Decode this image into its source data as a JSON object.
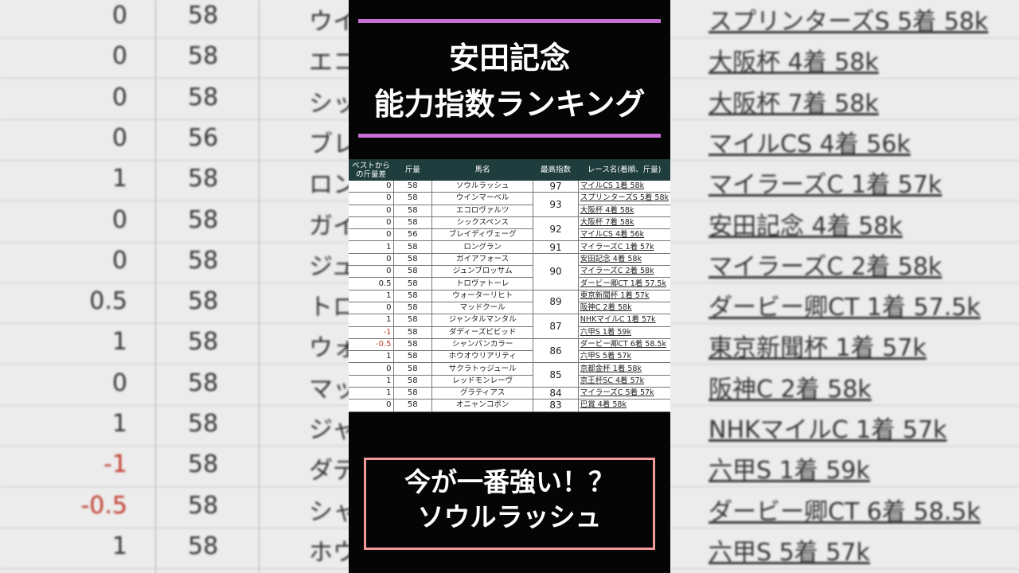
{
  "title": {
    "line1": "安田記念",
    "line2": "能力指数ランキング"
  },
  "caption": {
    "line1": "今が一番強い！？",
    "line2": "ソウルラッシュ"
  },
  "table": {
    "headers": [
      "ベストからの斤量差",
      "斤量",
      "馬名",
      "最高指数",
      "レース名(着順、斤量)"
    ],
    "rows": [
      {
        "diff": "0",
        "weight": "58",
        "name": "ソウルラッシュ",
        "index": "97",
        "race": "マイルCS 1着 58k"
      },
      {
        "diff": "0",
        "weight": "58",
        "name": "ウインマーベル",
        "index": "93",
        "race": "スプリンターズS 5着 58k"
      },
      {
        "diff": "0",
        "weight": "58",
        "name": "エコロヴァルツ",
        "index": "93",
        "race": "大阪杯 4着 58k"
      },
      {
        "diff": "0",
        "weight": "58",
        "name": "シックスペンス",
        "index": "92",
        "race": "大阪杯 7着 58k"
      },
      {
        "diff": "0",
        "weight": "56",
        "name": "ブレイディヴェーグ",
        "index": "92",
        "race": "マイルCS 4着 56k"
      },
      {
        "diff": "1",
        "weight": "58",
        "name": "ロングラン",
        "index": "91",
        "race": "マイラーズC 1着 57k"
      },
      {
        "diff": "0",
        "weight": "58",
        "name": "ガイアフォース",
        "index": "90",
        "race": "安田記念 4着 58k"
      },
      {
        "diff": "0",
        "weight": "58",
        "name": "ジュンブロッサム",
        "index": "90",
        "race": "マイラーズC 2着 58k"
      },
      {
        "diff": "0.5",
        "weight": "58",
        "name": "トロヴァトーレ",
        "index": "90",
        "race": "ダービー卿CT 1着 57.5k"
      },
      {
        "diff": "1",
        "weight": "58",
        "name": "ウォーターリヒト",
        "index": "89",
        "race": "東京新聞杯 1着 57k"
      },
      {
        "diff": "0",
        "weight": "58",
        "name": "マッドクール",
        "index": "89",
        "race": "阪神C 2着 58k"
      },
      {
        "diff": "1",
        "weight": "58",
        "name": "ジャンタルマンタル",
        "index": "87",
        "race": "NHKマイルC 1着 57k"
      },
      {
        "diff": "-1",
        "weight": "58",
        "name": "ダディーズビビッド",
        "index": "87",
        "race": "六甲S 1着 59k"
      },
      {
        "diff": "-0.5",
        "weight": "58",
        "name": "シャンパンカラー",
        "index": "86",
        "race": "ダービー卿CT 6着 58.5k"
      },
      {
        "diff": "1",
        "weight": "58",
        "name": "ホウオウリアリティ",
        "index": "86",
        "race": "六甲S 5着 57k"
      },
      {
        "diff": "0",
        "weight": "58",
        "name": "サクラトゥジュール",
        "index": "85",
        "race": "京都金杯 1着 58k"
      },
      {
        "diff": "1",
        "weight": "58",
        "name": "レッドモンレーヴ",
        "index": "85",
        "race": "京王杯SC 4着 57k"
      },
      {
        "diff": "1",
        "weight": "58",
        "name": "グラティアス",
        "index": "84",
        "race": "マイラーズC 5着 57k"
      },
      {
        "diff": "0",
        "weight": "58",
        "name": "オニャンコポン",
        "index": "83",
        "race": "巴賞 4着 58k"
      }
    ]
  },
  "colors": {
    "accent_line": "#c86fd6",
    "caption_border": "#f29a9a",
    "header_bg": "#1e3d3c",
    "negative": "#c0392b"
  }
}
